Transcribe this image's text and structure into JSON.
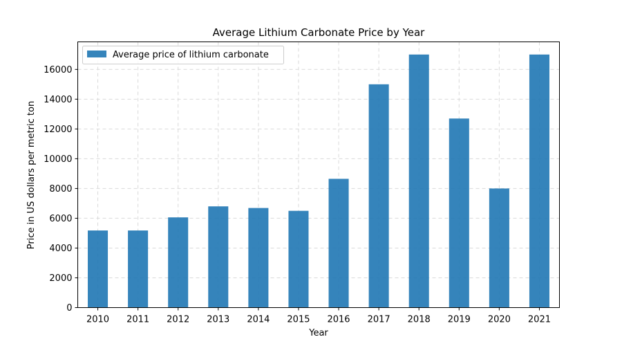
{
  "chart_data": {
    "type": "bar",
    "title": "Average Lithium Carbonate Price by Year",
    "xlabel": "Year",
    "ylabel": "Price in US dollars per metric ton",
    "categories": [
      "2010",
      "2011",
      "2012",
      "2013",
      "2014",
      "2015",
      "2016",
      "2017",
      "2018",
      "2019",
      "2020",
      "2021"
    ],
    "series": [
      {
        "name": "Average price of lithium carbonate",
        "values": [
          5180,
          5180,
          6060,
          6800,
          6690,
          6500,
          8650,
          15000,
          17000,
          12700,
          8000,
          17000
        ],
        "color": "#1f77b4"
      }
    ],
    "ylim": [
      0,
      17850
    ],
    "yticks": [
      0,
      2000,
      4000,
      6000,
      8000,
      10000,
      12000,
      14000,
      16000
    ],
    "grid": true,
    "legend_position": "upper-left"
  }
}
